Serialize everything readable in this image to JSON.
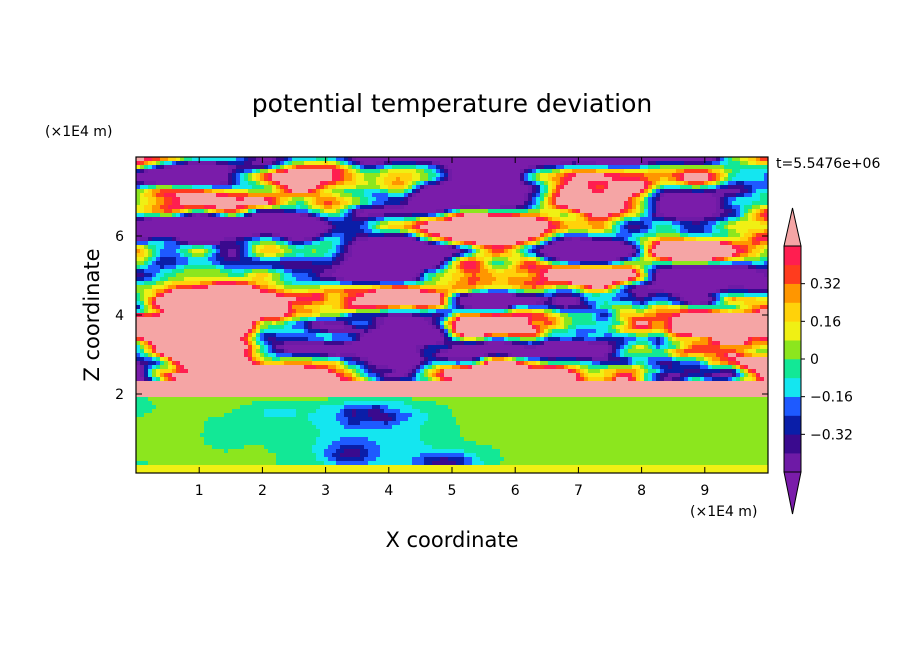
{
  "chart_data": {
    "type": "heatmap",
    "title": "potential temperature deviation",
    "xlabel": "X coordinate",
    "ylabel": "Z coordinate",
    "x_unit": "(×1E4 m)",
    "y_unit": "(×1E4 m)",
    "time_label": "t=5.5476e+06",
    "xlim": [
      0,
      10
    ],
    "ylim": [
      0,
      8
    ],
    "x_ticks": [
      1,
      2,
      3,
      4,
      5,
      6,
      7,
      8,
      9
    ],
    "y_ticks": [
      2,
      4,
      6
    ],
    "colorbar": {
      "levels": [
        -0.48,
        -0.4,
        -0.32,
        -0.24,
        -0.16,
        -0.08,
        0,
        0.08,
        0.16,
        0.24,
        0.32,
        0.4,
        0.48
      ],
      "labeled_levels": [
        "0.32",
        "0.16",
        "0",
        "−0.16",
        "−0.32"
      ],
      "colors_low_to_high": [
        "#6e1aa6",
        "#3a0a8e",
        "#0a1ea8",
        "#1e5aff",
        "#14e6f0",
        "#12e896",
        "#8ce61e",
        "#f0f014",
        "#ffd20a",
        "#ff9600",
        "#ff3c1e",
        "#ff1e50"
      ],
      "below_color": "#7a1caa",
      "above_color": "#f5a5a5"
    },
    "regions": [
      {
        "z_range": [
          0,
          0.2
        ],
        "value": 0.09,
        "description": "near-surface layer"
      },
      {
        "z_range": [
          0.2,
          1.95
        ],
        "value": 0.02,
        "description": "lower layer with cold anomalies near x=2.5-6"
      },
      {
        "center": [
          4.9,
          0.25
        ],
        "value": -0.35
      },
      {
        "center": [
          3.4,
          0.45
        ],
        "value": -0.3
      },
      {
        "center": [
          3.7,
          1.4
        ],
        "value": -0.45
      },
      {
        "z_range": [
          2.0,
          2.3
        ],
        "value": 0.48
      },
      {
        "z_range": [
          2.3,
          8.0
        ],
        "alternating_bands": [
          -0.48,
          0.48
        ]
      }
    ]
  }
}
